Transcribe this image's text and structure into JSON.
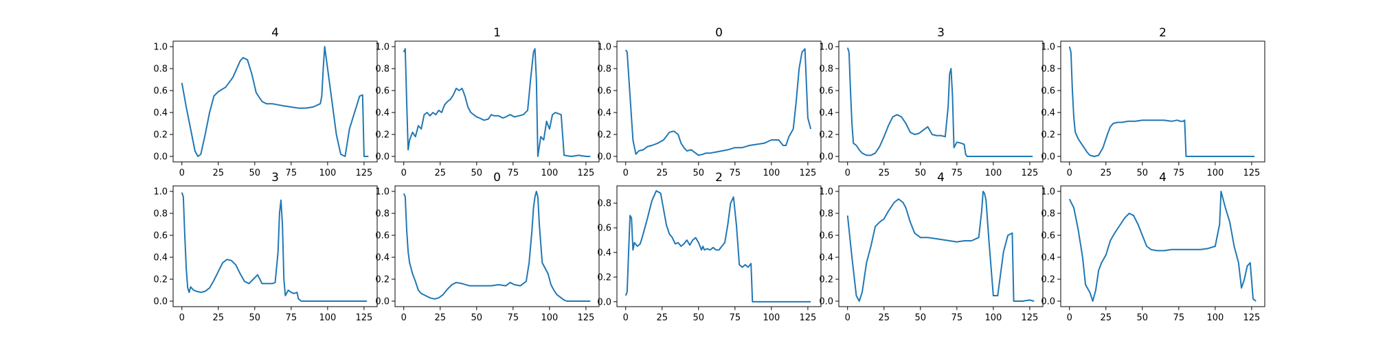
{
  "chart_data": [
    {
      "type": "line",
      "title": "4",
      "xlim": [
        -6,
        134
      ],
      "ylim": [
        -0.05,
        1.05
      ],
      "xticks": [
        0,
        25,
        50,
        75,
        100,
        125
      ],
      "yticks": [
        0.0,
        0.2,
        0.4,
        0.6,
        0.8,
        1.0
      ],
      "grid": false,
      "color": "#1f77b4",
      "x": [
        0,
        3,
        6,
        9,
        11,
        13,
        16,
        19,
        22,
        25,
        30,
        35,
        40,
        42,
        45,
        48,
        51,
        55,
        58,
        62,
        66,
        70,
        75,
        80,
        85,
        90,
        95,
        96,
        97,
        98,
        100,
        103,
        106,
        109,
        112,
        115,
        118,
        122,
        124,
        125,
        128
      ],
      "y": [
        0.67,
        0.45,
        0.25,
        0.05,
        0.0,
        0.02,
        0.2,
        0.4,
        0.55,
        0.59,
        0.63,
        0.72,
        0.87,
        0.9,
        0.88,
        0.75,
        0.58,
        0.5,
        0.48,
        0.48,
        0.47,
        0.46,
        0.45,
        0.44,
        0.44,
        0.45,
        0.48,
        0.55,
        0.8,
        1.0,
        0.8,
        0.5,
        0.2,
        0.02,
        0.0,
        0.25,
        0.38,
        0.55,
        0.56,
        0.0,
        0.0
      ]
    },
    {
      "type": "line",
      "title": "1",
      "xlim": [
        -6,
        134
      ],
      "ylim": [
        -0.05,
        1.05
      ],
      "xticks": [
        0,
        25,
        50,
        75,
        100,
        125
      ],
      "yticks": [
        0.0,
        0.2,
        0.4,
        0.6,
        0.8,
        1.0
      ],
      "grid": false,
      "color": "#1f77b4",
      "x": [
        0,
        1,
        2,
        3,
        4,
        6,
        8,
        10,
        12,
        14,
        16,
        18,
        20,
        22,
        24,
        26,
        28,
        30,
        32,
        34,
        36,
        38,
        40,
        42,
        44,
        46,
        48,
        50,
        52,
        55,
        58,
        60,
        62,
        65,
        68,
        70,
        73,
        76,
        79,
        82,
        85,
        87,
        89,
        90,
        91,
        92,
        94,
        96,
        98,
        100,
        102,
        104,
        106,
        108,
        110,
        115,
        120,
        125,
        128
      ],
      "y": [
        0.95,
        0.98,
        0.5,
        0.06,
        0.15,
        0.22,
        0.18,
        0.28,
        0.25,
        0.38,
        0.4,
        0.37,
        0.4,
        0.38,
        0.42,
        0.4,
        0.47,
        0.5,
        0.52,
        0.56,
        0.62,
        0.6,
        0.62,
        0.55,
        0.45,
        0.4,
        0.38,
        0.36,
        0.35,
        0.33,
        0.34,
        0.38,
        0.37,
        0.37,
        0.35,
        0.36,
        0.38,
        0.36,
        0.37,
        0.38,
        0.42,
        0.7,
        0.95,
        0.98,
        0.7,
        0.0,
        0.18,
        0.15,
        0.32,
        0.25,
        0.38,
        0.4,
        0.39,
        0.38,
        0.01,
        0.0,
        0.01,
        0.0,
        0.0
      ]
    },
    {
      "type": "line",
      "title": "0",
      "xlim": [
        -6,
        134
      ],
      "ylim": [
        -0.05,
        1.05
      ],
      "xticks": [
        0,
        25,
        50,
        75,
        100,
        125
      ],
      "yticks": [
        0.0,
        0.2,
        0.4,
        0.6,
        0.8,
        1.0
      ],
      "grid": false,
      "color": "#1f77b4",
      "x": [
        0,
        1,
        3,
        5,
        7,
        9,
        12,
        15,
        18,
        22,
        26,
        30,
        33,
        36,
        38,
        40,
        42,
        45,
        48,
        50,
        53,
        55,
        58,
        62,
        66,
        70,
        75,
        80,
        85,
        90,
        95,
        100,
        105,
        108,
        110,
        112,
        115,
        117,
        119,
        121,
        123,
        125,
        127
      ],
      "y": [
        0.97,
        0.95,
        0.55,
        0.15,
        0.02,
        0.05,
        0.06,
        0.09,
        0.1,
        0.12,
        0.15,
        0.22,
        0.23,
        0.2,
        0.12,
        0.08,
        0.05,
        0.06,
        0.03,
        0.01,
        0.02,
        0.03,
        0.03,
        0.04,
        0.05,
        0.06,
        0.08,
        0.08,
        0.1,
        0.11,
        0.12,
        0.15,
        0.15,
        0.1,
        0.1,
        0.18,
        0.25,
        0.5,
        0.8,
        0.95,
        0.98,
        0.35,
        0.25
      ]
    },
    {
      "type": "line",
      "title": "3",
      "xlim": [
        -6,
        134
      ],
      "ylim": [
        -0.05,
        1.05
      ],
      "xticks": [
        0,
        25,
        50,
        75,
        100,
        125
      ],
      "yticks": [
        0.0,
        0.2,
        0.4,
        0.6,
        0.8,
        1.0
      ],
      "grid": false,
      "color": "#1f77b4",
      "x": [
        0,
        1,
        2,
        3,
        4,
        6,
        8,
        10,
        13,
        16,
        19,
        22,
        25,
        28,
        31,
        34,
        37,
        40,
        43,
        46,
        49,
        52,
        55,
        58,
        61,
        64,
        67,
        69,
        70,
        71,
        72,
        73,
        75,
        78,
        80,
        81,
        82,
        85,
        90,
        100,
        110,
        120,
        127
      ],
      "y": [
        0.99,
        0.95,
        0.6,
        0.3,
        0.12,
        0.1,
        0.06,
        0.03,
        0.01,
        0.01,
        0.03,
        0.09,
        0.18,
        0.28,
        0.36,
        0.38,
        0.36,
        0.3,
        0.22,
        0.2,
        0.21,
        0.24,
        0.27,
        0.2,
        0.19,
        0.19,
        0.18,
        0.45,
        0.75,
        0.8,
        0.55,
        0.08,
        0.13,
        0.12,
        0.11,
        0.02,
        0.0,
        0.0,
        0.0,
        0.0,
        0.0,
        0.0,
        0.0
      ]
    },
    {
      "type": "line",
      "title": "2",
      "xlim": [
        -6,
        134
      ],
      "ylim": [
        -0.05,
        1.05
      ],
      "xticks": [
        0,
        25,
        50,
        75,
        100,
        125
      ],
      "yticks": [
        0.0,
        0.2,
        0.4,
        0.6,
        0.8,
        1.0
      ],
      "grid": false,
      "color": "#1f77b4",
      "x": [
        0,
        1,
        2,
        3,
        4,
        6,
        8,
        10,
        12,
        14,
        17,
        20,
        23,
        26,
        28,
        30,
        33,
        36,
        40,
        45,
        50,
        55,
        60,
        65,
        70,
        74,
        76,
        78,
        79,
        80,
        85,
        90,
        100,
        110,
        120,
        127
      ],
      "y": [
        1.0,
        0.95,
        0.6,
        0.35,
        0.22,
        0.16,
        0.12,
        0.08,
        0.04,
        0.01,
        0.0,
        0.01,
        0.08,
        0.2,
        0.27,
        0.3,
        0.31,
        0.31,
        0.32,
        0.32,
        0.33,
        0.33,
        0.33,
        0.33,
        0.32,
        0.33,
        0.32,
        0.32,
        0.33,
        0.0,
        0.0,
        0.0,
        0.0,
        0.0,
        0.0,
        0.0
      ]
    },
    {
      "type": "line",
      "title": "3",
      "xlim": [
        -6,
        134
      ],
      "ylim": [
        -0.05,
        1.05
      ],
      "xticks": [
        0,
        25,
        50,
        75,
        100,
        125
      ],
      "yticks": [
        0.0,
        0.2,
        0.4,
        0.6,
        0.8,
        1.0
      ],
      "grid": false,
      "color": "#1f77b4",
      "x": [
        0,
        1,
        2,
        3,
        4,
        5,
        6,
        8,
        10,
        13,
        16,
        19,
        22,
        25,
        28,
        31,
        34,
        37,
        40,
        43,
        46,
        49,
        52,
        55,
        58,
        62,
        64,
        66,
        67,
        68,
        69,
        70,
        71,
        73,
        75,
        77,
        79,
        80,
        82,
        90,
        100,
        110,
        120,
        127
      ],
      "y": [
        0.99,
        0.95,
        0.6,
        0.3,
        0.12,
        0.08,
        0.13,
        0.1,
        0.09,
        0.08,
        0.09,
        0.12,
        0.19,
        0.27,
        0.35,
        0.38,
        0.37,
        0.33,
        0.25,
        0.18,
        0.16,
        0.2,
        0.24,
        0.16,
        0.16,
        0.16,
        0.17,
        0.45,
        0.8,
        0.92,
        0.7,
        0.2,
        0.05,
        0.1,
        0.08,
        0.07,
        0.08,
        0.02,
        0.0,
        0.0,
        0.0,
        0.0,
        0.0,
        0.0
      ]
    },
    {
      "type": "line",
      "title": "0",
      "xlim": [
        -6,
        134
      ],
      "ylim": [
        -0.05,
        1.05
      ],
      "xticks": [
        0,
        25,
        50,
        75,
        100,
        125
      ],
      "yticks": [
        0.0,
        0.2,
        0.4,
        0.6,
        0.8,
        1.0
      ],
      "grid": false,
      "color": "#1f77b4",
      "x": [
        0,
        1,
        2,
        3,
        4,
        6,
        8,
        10,
        12,
        15,
        18,
        21,
        24,
        27,
        30,
        33,
        36,
        40,
        45,
        50,
        55,
        60,
        65,
        70,
        73,
        76,
        80,
        84,
        86,
        88,
        89,
        90,
        91,
        92,
        93,
        95,
        97,
        99,
        101,
        103,
        105,
        108,
        110,
        112,
        115,
        120,
        125,
        128
      ],
      "y": [
        0.98,
        0.95,
        0.65,
        0.45,
        0.35,
        0.25,
        0.18,
        0.1,
        0.07,
        0.05,
        0.03,
        0.02,
        0.03,
        0.06,
        0.11,
        0.15,
        0.17,
        0.16,
        0.14,
        0.14,
        0.14,
        0.14,
        0.15,
        0.14,
        0.17,
        0.15,
        0.14,
        0.18,
        0.35,
        0.65,
        0.85,
        0.95,
        1.0,
        0.95,
        0.7,
        0.35,
        0.3,
        0.25,
        0.15,
        0.1,
        0.06,
        0.03,
        0.01,
        0.0,
        0.0,
        0.0,
        0.0,
        0.0
      ]
    },
    {
      "type": "line",
      "title": "2",
      "xlim": [
        -6,
        134
      ],
      "ylim": [
        -0.04,
        0.94
      ],
      "xticks": [
        0,
        25,
        50,
        75,
        100,
        125
      ],
      "yticks": [
        0.0,
        0.2,
        0.4,
        0.6,
        0.8
      ],
      "grid": false,
      "color": "#1f77b4",
      "x": [
        0,
        1,
        2,
        3,
        4,
        5,
        6,
        8,
        10,
        12,
        15,
        18,
        21,
        24,
        26,
        28,
        30,
        32,
        34,
        36,
        38,
        40,
        42,
        44,
        46,
        48,
        50,
        52,
        53,
        54,
        56,
        58,
        60,
        62,
        64,
        66,
        68,
        70,
        72,
        74,
        76,
        78,
        80,
        82,
        84,
        86,
        87,
        88,
        95,
        110,
        127
      ],
      "y": [
        0.05,
        0.08,
        0.4,
        0.7,
        0.68,
        0.42,
        0.48,
        0.45,
        0.47,
        0.55,
        0.68,
        0.82,
        0.9,
        0.88,
        0.75,
        0.62,
        0.55,
        0.52,
        0.47,
        0.48,
        0.45,
        0.47,
        0.5,
        0.46,
        0.5,
        0.52,
        0.48,
        0.42,
        0.45,
        0.42,
        0.43,
        0.42,
        0.44,
        0.42,
        0.42,
        0.45,
        0.48,
        0.62,
        0.8,
        0.85,
        0.62,
        0.3,
        0.28,
        0.3,
        0.28,
        0.31,
        0.0,
        0.0,
        0.0,
        0.0,
        0.0
      ]
    },
    {
      "type": "line",
      "title": "4",
      "xlim": [
        -6,
        134
      ],
      "ylim": [
        -0.05,
        1.05
      ],
      "xticks": [
        0,
        25,
        50,
        75,
        100,
        125
      ],
      "yticks": [
        0.0,
        0.2,
        0.4,
        0.6,
        0.8,
        1.0
      ],
      "grid": false,
      "color": "#1f77b4",
      "x": [
        0,
        3,
        6,
        8,
        10,
        13,
        16,
        19,
        22,
        25,
        28,
        32,
        35,
        38,
        40,
        43,
        46,
        50,
        55,
        60,
        65,
        70,
        75,
        80,
        85,
        90,
        92,
        93,
        94,
        95,
        97,
        100,
        103,
        105,
        107,
        110,
        113,
        114,
        115,
        120,
        125,
        128
      ],
      "y": [
        0.78,
        0.4,
        0.05,
        0.0,
        0.08,
        0.35,
        0.5,
        0.68,
        0.72,
        0.75,
        0.82,
        0.9,
        0.93,
        0.9,
        0.85,
        0.72,
        0.62,
        0.58,
        0.58,
        0.57,
        0.56,
        0.55,
        0.54,
        0.55,
        0.55,
        0.58,
        0.82,
        1.0,
        0.98,
        0.92,
        0.55,
        0.05,
        0.05,
        0.25,
        0.45,
        0.6,
        0.62,
        0.0,
        0.0,
        0.0,
        0.01,
        0.0
      ]
    },
    {
      "type": "line",
      "title": "4",
      "xlim": [
        -6,
        134
      ],
      "ylim": [
        -0.05,
        1.05
      ],
      "xticks": [
        0,
        25,
        50,
        75,
        100,
        125
      ],
      "yticks": [
        0.0,
        0.2,
        0.4,
        0.6,
        0.8,
        1.0
      ],
      "grid": false,
      "color": "#1f77b4",
      "x": [
        0,
        3,
        6,
        9,
        11,
        14,
        16,
        18,
        20,
        22,
        25,
        28,
        31,
        35,
        38,
        41,
        44,
        47,
        50,
        53,
        56,
        60,
        65,
        70,
        75,
        80,
        85,
        90,
        95,
        100,
        103,
        104,
        105,
        107,
        110,
        113,
        116,
        118,
        120,
        122,
        124,
        126,
        128
      ],
      "y": [
        0.93,
        0.85,
        0.65,
        0.4,
        0.15,
        0.08,
        0.0,
        0.1,
        0.28,
        0.35,
        0.42,
        0.55,
        0.62,
        0.7,
        0.76,
        0.8,
        0.78,
        0.7,
        0.6,
        0.5,
        0.47,
        0.46,
        0.46,
        0.47,
        0.47,
        0.47,
        0.47,
        0.47,
        0.48,
        0.5,
        0.7,
        1.0,
        0.95,
        0.85,
        0.72,
        0.5,
        0.35,
        0.12,
        0.2,
        0.32,
        0.35,
        0.02,
        0.0
      ]
    }
  ]
}
